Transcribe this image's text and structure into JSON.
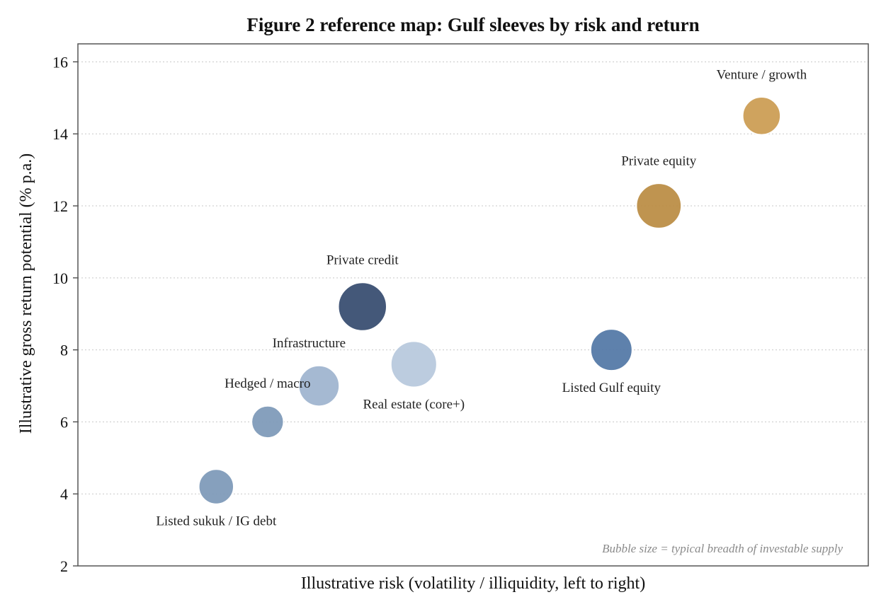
{
  "chart_data": {
    "type": "scatter",
    "title": "Figure 2 reference map: Gulf sleeves by risk and return",
    "xlabel": "Illustrative risk (volatility / illiquidity, left to right)",
    "ylabel": "Illustrative gross return potential (% p.a.)",
    "ylim": [
      2,
      16.5
    ],
    "xlim": [
      0,
      10
    ],
    "yticks": [
      2,
      4,
      6,
      8,
      10,
      12,
      14,
      16
    ],
    "x_ticks_shown": false,
    "grid": "horizontal dotted",
    "note": "Bubble size = typical breadth of investable supply",
    "points": [
      {
        "label": "Listed sukuk / IG debt",
        "x": 1.75,
        "y": 4.2,
        "size": 0.72,
        "color": "#7f9bb9",
        "label_position": "below"
      },
      {
        "label": "Hedged / macro",
        "x": 2.4,
        "y": 6.0,
        "size": 0.66,
        "color": "#7f9bb9",
        "label_position": "above"
      },
      {
        "label": "Infrastructure",
        "x": 3.05,
        "y": 7.0,
        "size": 0.84,
        "color": "#a0b5d0",
        "label_position": "above-left"
      },
      {
        "label": "Private credit",
        "x": 3.6,
        "y": 9.2,
        "size": 1.0,
        "color": "#3a4f72",
        "label_position": "above"
      },
      {
        "label": "Real estate (core+)",
        "x": 4.25,
        "y": 7.6,
        "size": 0.95,
        "color": "#b8c9dd",
        "label_position": "below"
      },
      {
        "label": "Listed Gulf equity",
        "x": 6.75,
        "y": 8.0,
        "size": 0.86,
        "color": "#557aa8",
        "label_position": "below"
      },
      {
        "label": "Private equity",
        "x": 7.35,
        "y": 12.0,
        "size": 0.93,
        "color": "#bc8e47",
        "label_position": "above"
      },
      {
        "label": "Venture / growth",
        "x": 8.65,
        "y": 14.5,
        "size": 0.78,
        "color": "#cc9e55",
        "label_position": "above"
      }
    ]
  }
}
